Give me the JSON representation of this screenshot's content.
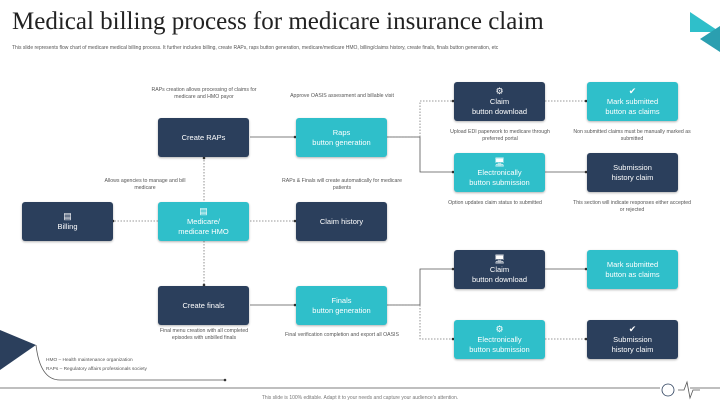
{
  "title": "Medical billing process for medicare insurance claim",
  "subtitle": "This slide represents flow chart of medicare medical billing process. It further includes billing, create RAPs, raps button generation, medicare/medicare HMO, billing/claims history, create finals, finals button generation, etc",
  "colors": {
    "navy": "#2b3f5c",
    "teal": "#2fbfca"
  },
  "boxes": {
    "create_raps": "Create RAPs",
    "raps_gen": [
      "Raps",
      "button generation"
    ],
    "claim_dl_1": [
      "Claim",
      "button download"
    ],
    "mark_1": [
      "Mark submitted",
      "button as claims"
    ],
    "elec_1": [
      "Electronically",
      "button submission"
    ],
    "sub_hist_1": [
      "Submission",
      "history claim"
    ],
    "billing": "Billing",
    "medicare": [
      "Medicare/",
      "medicare HMO"
    ],
    "claim_history": "Claim history",
    "create_finals": "Create finals",
    "finals_gen": [
      "Finals",
      "button generation"
    ],
    "claim_dl_2": [
      "Claim",
      "button download"
    ],
    "mark_2": [
      "Mark submitted",
      "button as claims"
    ],
    "elec_2": [
      "Electronically",
      "button submission"
    ],
    "sub_hist_2": [
      "Submission",
      "history claim"
    ]
  },
  "notes": {
    "raps_creation": "RAPs creation allows processing of claims for medicare and HMO payor",
    "approve": "Approve OASIS assessment and billable visit",
    "upload": "Upload EDI paperwork to medicare through preferred portal",
    "non_submitted": "Non submitted claims must be manually marked as submitted",
    "allows": "Allows agencies to manage and bill medicare",
    "raps_finals": "RAPs & Finals will create automatically for medicare patients",
    "option": "Option updates claim status to submitted",
    "section": "This section will indicate responses either accepted or rejected",
    "final_menu": "Final menu creation with all completed episodes with unbilled finals",
    "final_verif": "Final verification completion and export all OASIS"
  },
  "legend": [
    "HMO – Health maintenance organization",
    "RAPs – Regulatory affairs professionals society"
  ],
  "footer": "This slide is 100% editable. Adapt it to your needs and capture your audience's attention."
}
